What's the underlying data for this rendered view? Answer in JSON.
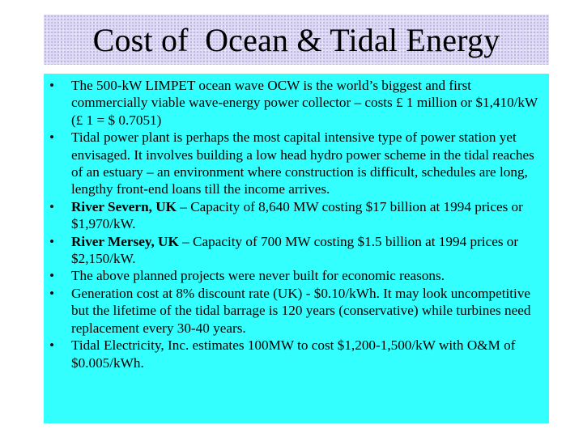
{
  "slide": {
    "title": "Cost of  Ocean & Tidal Energy",
    "bullet_glyph": "•",
    "colors": {
      "title_background": "#dcd8f4",
      "content_background": "#33ffff",
      "text": "#000000"
    },
    "bullets": [
      {
        "text": "The 500-kW LIMPET ocean wave OCW  is the world’s biggest and first commercially viable wave-energy power collector – costs £ 1 million or $1,410/kW  (£ 1 = $ 0.7051)"
      },
      {
        "text": "Tidal power plant is perhaps the most capital intensive type of power station yet envisaged. It involves building a low head hydro power scheme in the tidal reaches of an estuary – an environment where construction is difficult, schedules are long, lengthy front-end loans till the income arrives."
      },
      {
        "bold": "River Severn, UK",
        "text": " – Capacity of 8,640 MW costing $17 billion at 1994 prices or $1,970/kW."
      },
      {
        "bold": "River Mersey, UK",
        "text": " – Capacity of 700 MW costing $1.5 billion at 1994 prices or $2,150/kW."
      },
      {
        "text": "The above planned projects were never built for economic reasons."
      },
      {
        "text": "Generation cost at 8% discount rate (UK) - $0.10/kWh. It may look uncompetitive but the lifetime of the tidal barrage is 120 years (conservative) while turbines need replacement every 30-40 years."
      },
      {
        "text": "Tidal Electricity, Inc. estimates 100MW to cost $1,200-1,500/kW with O&M of $0.005/kWh."
      }
    ]
  }
}
